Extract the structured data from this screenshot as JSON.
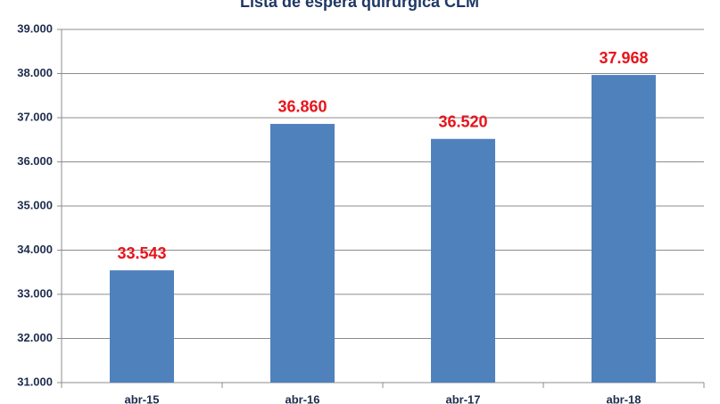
{
  "chart_data": {
    "type": "bar",
    "title": "Lista de espera quirúrgica CLM",
    "categories": [
      "abr-15",
      "abr-16",
      "abr-17",
      "abr-18"
    ],
    "values": [
      33543,
      36860,
      36520,
      37968
    ],
    "value_labels": [
      "33.543",
      "36.860",
      "36.520",
      "37.968"
    ],
    "color": "#4f81bd",
    "ylim": [
      31000,
      39000
    ],
    "yticks": [
      {
        "value": 31000,
        "label": "31.000"
      },
      {
        "value": 32000,
        "label": "32.000"
      },
      {
        "value": 33000,
        "label": "33.000"
      },
      {
        "value": 34000,
        "label": "34.000"
      },
      {
        "value": 35000,
        "label": "35.000"
      },
      {
        "value": 36000,
        "label": "36.000"
      },
      {
        "value": 37000,
        "label": "37.000"
      },
      {
        "value": 38000,
        "label": "38.000"
      },
      {
        "value": 39000,
        "label": "39.000"
      }
    ],
    "grid": true
  }
}
